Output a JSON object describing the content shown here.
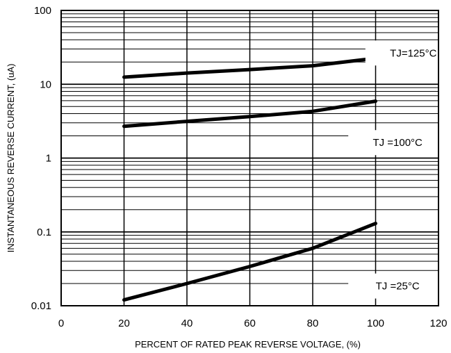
{
  "chart_data": {
    "type": "line",
    "title": "",
    "xlabel": "PERCENT OF RATED PEAK REVERSE VOLTAGE, (%)",
    "ylabel": "INSTANTANEOUS REVERSE CURRENT, (uA)",
    "xlim": [
      0,
      120
    ],
    "ylim": [
      0.01,
      100
    ],
    "yscale": "log",
    "grid": true,
    "x_ticks": [
      "0",
      "20",
      "40",
      "60",
      "80",
      "100",
      "120"
    ],
    "y_ticks": [
      "0.01",
      "0.1",
      "1",
      "10",
      "100"
    ],
    "series": [
      {
        "name": "TJ=125°C",
        "x": [
          20,
          40,
          60,
          80,
          100
        ],
        "y": [
          12.5,
          14.2,
          15.8,
          17.8,
          22.5
        ]
      },
      {
        "name": "TJ =100°C",
        "x": [
          20,
          40,
          60,
          80,
          100
        ],
        "y": [
          2.7,
          3.15,
          3.65,
          4.3,
          5.9
        ]
      },
      {
        "name": "TJ =25°C",
        "x": [
          20,
          40,
          60,
          80,
          100
        ],
        "y": [
          0.012,
          0.02,
          0.034,
          0.06,
          0.13
        ]
      }
    ],
    "annotations": [
      {
        "text": "TJ=125°C"
      },
      {
        "text": "TJ =100°C"
      },
      {
        "text": "TJ =25°C"
      }
    ],
    "colors": {
      "line": "#000000",
      "grid": "#000000",
      "background": "#ffffff"
    }
  }
}
